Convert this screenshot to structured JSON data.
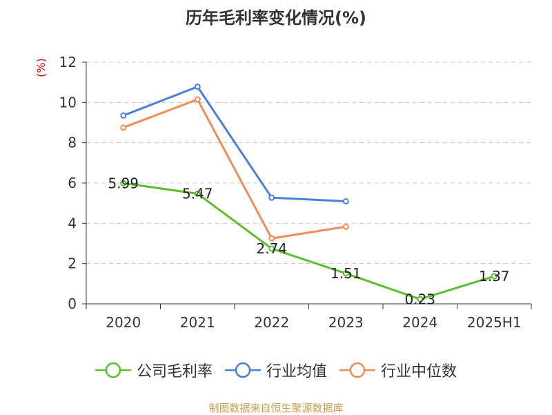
{
  "chart_data": {
    "type": "line",
    "title": "历年毛利率变化情况(%)",
    "ylabel": "(%)",
    "categories": [
      "2020",
      "2021",
      "2022",
      "2023",
      "2024",
      "2025H1"
    ],
    "ylim": [
      0,
      12
    ],
    "yticks": [
      0,
      2,
      4,
      6,
      8,
      10,
      12
    ],
    "grid": true,
    "legend_position": "bottom",
    "series": [
      {
        "name": "公司毛利率",
        "color": "#5cbf2a",
        "values": [
          5.99,
          5.47,
          2.74,
          1.51,
          0.23,
          1.37
        ],
        "labels": [
          "5.99",
          "5.47",
          "2.74",
          "1.51",
          "0.23",
          "1.37"
        ]
      },
      {
        "name": "行业均值",
        "color": "#4a7fdc",
        "values": [
          9.35,
          10.78,
          5.27,
          5.09,
          null,
          null
        ]
      },
      {
        "name": "行业中位数",
        "color": "#f58a55",
        "values": [
          8.75,
          10.15,
          3.25,
          3.83,
          null,
          null
        ]
      }
    ]
  },
  "source": "制图数据来自恒生聚源数据库"
}
